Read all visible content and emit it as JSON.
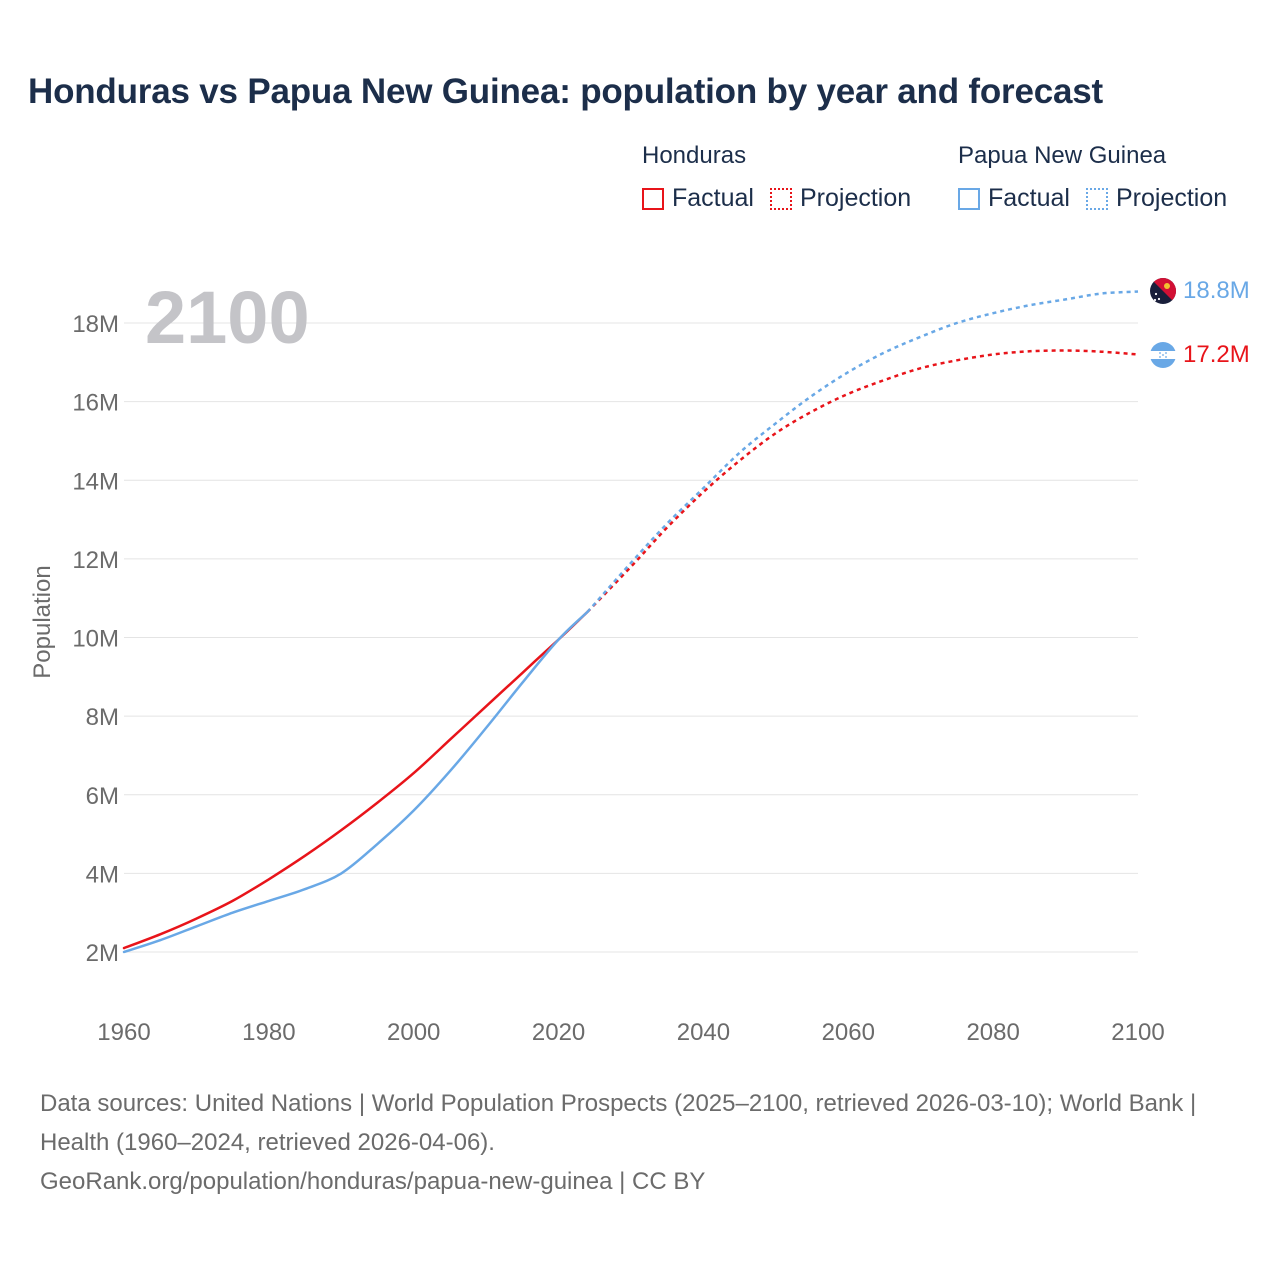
{
  "title": "Honduras vs Papua New Guinea: population by year and forecast",
  "legend": {
    "groups": [
      {
        "name": "Honduras",
        "factual_label": "Factual",
        "projection_label": "Projection",
        "color": "#e8141a"
      },
      {
        "name": "Papua New Guinea",
        "factual_label": "Factual",
        "projection_label": "Projection",
        "color": "#69a8e6"
      }
    ]
  },
  "year_watermark": "2100",
  "footer": {
    "sources": "Data sources: United Nations | World Population Prospects (2025–2100, retrieved 2026-03-10); World Bank | Health (1960–2024, retrieved 2026-04-06).",
    "url": "GeoRank.org/population/honduras/papua-new-guinea | CC BY"
  },
  "chart_data": {
    "type": "line",
    "title": "Honduras vs Papua New Guinea: population by year and forecast",
    "xlabel": "",
    "ylabel": "Population",
    "xlim": [
      1960,
      2100
    ],
    "ylim": [
      2000000,
      18000000
    ],
    "x_ticks": [
      "1960",
      "1980",
      "2000",
      "2020",
      "2040",
      "2060",
      "2080",
      "2100"
    ],
    "y_ticks": [
      "2M",
      "4M",
      "6M",
      "8M",
      "10M",
      "12M",
      "14M",
      "16M",
      "18M"
    ],
    "grid": true,
    "projection_start": 2024,
    "series": [
      {
        "name": "Honduras",
        "color": "#e8141a",
        "end_label": "17.2M",
        "x": [
          1960,
          1965,
          1970,
          1975,
          1980,
          1985,
          1990,
          1995,
          2000,
          2005,
          2010,
          2015,
          2020,
          2024,
          2030,
          2035,
          2040,
          2045,
          2050,
          2055,
          2060,
          2065,
          2070,
          2075,
          2080,
          2085,
          2090,
          2095,
          2100
        ],
        "values": [
          2100000,
          2450000,
          2850000,
          3300000,
          3850000,
          4450000,
          5100000,
          5800000,
          6550000,
          7400000,
          8250000,
          9100000,
          9950000,
          10650000,
          11800000,
          12800000,
          13700000,
          14500000,
          15200000,
          15750000,
          16200000,
          16550000,
          16850000,
          17050000,
          17200000,
          17280000,
          17300000,
          17270000,
          17200000
        ]
      },
      {
        "name": "Papua New Guinea",
        "color": "#69a8e6",
        "end_label": "18.8M",
        "x": [
          1960,
          1965,
          1970,
          1975,
          1980,
          1985,
          1990,
          1995,
          2000,
          2005,
          2010,
          2015,
          2020,
          2024,
          2030,
          2035,
          2040,
          2045,
          2050,
          2055,
          2060,
          2065,
          2070,
          2075,
          2080,
          2085,
          2090,
          2095,
          2100
        ],
        "values": [
          2000000,
          2300000,
          2650000,
          3000000,
          3300000,
          3600000,
          4000000,
          4750000,
          5600000,
          6600000,
          7700000,
          8850000,
          9950000,
          10650000,
          11900000,
          12900000,
          13800000,
          14700000,
          15450000,
          16150000,
          16750000,
          17250000,
          17650000,
          18000000,
          18250000,
          18450000,
          18600000,
          18750000,
          18800000
        ]
      }
    ]
  }
}
